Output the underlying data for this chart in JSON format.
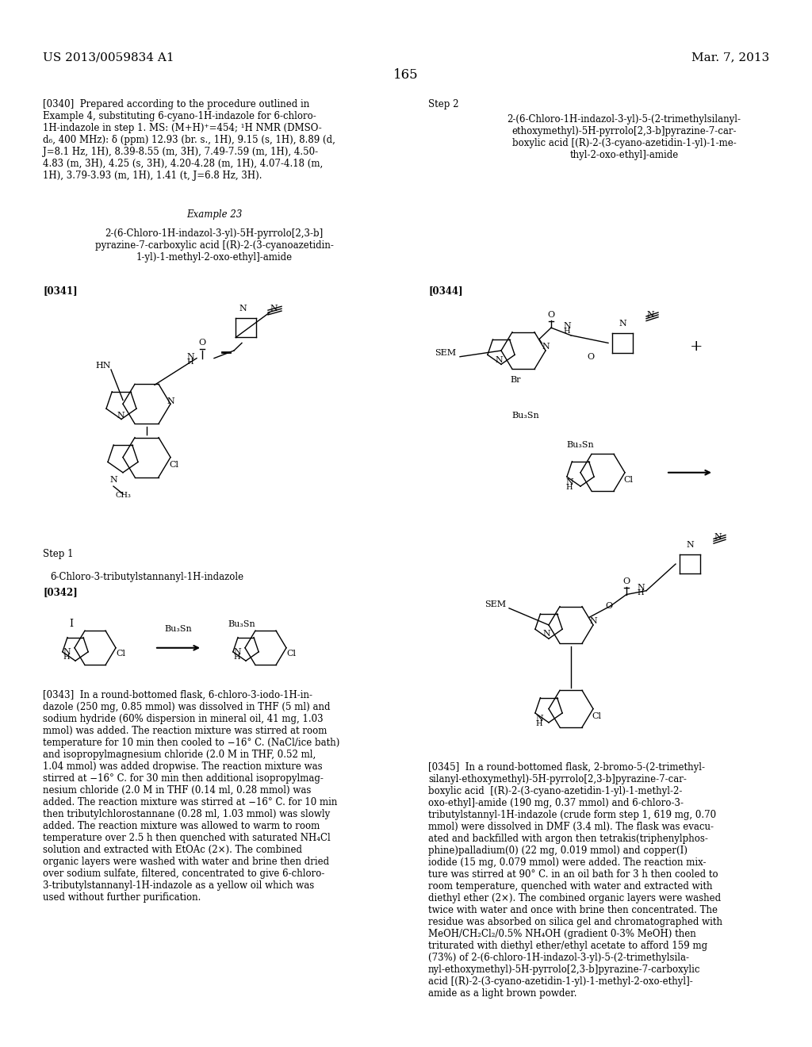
{
  "background_color": "#ffffff",
  "page_number": "165",
  "patent_left": "US 2013/0059834 A1",
  "patent_right": "Mar. 7, 2013",
  "header_fontsize": 11,
  "page_num_fontsize": 12,
  "body_fontsize": 8.5,
  "title_fontsize": 8.5,
  "label_fontsize": 8.5
}
